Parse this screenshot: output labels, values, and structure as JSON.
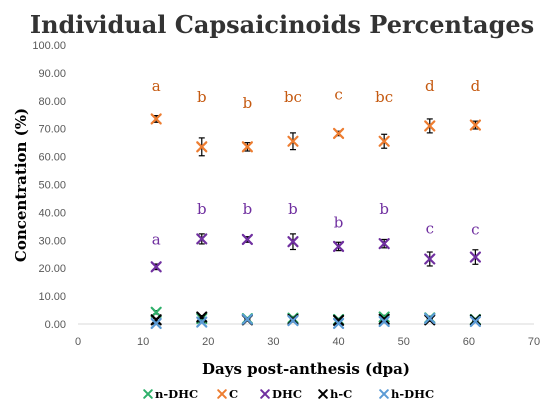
{
  "chart_data": {
    "type": "scatter",
    "title": "Individual Capsaicinoids Percentages",
    "xlabel": "Days post-anthesis (dpa)",
    "ylabel": "Concentration (%)",
    "xlim": [
      0,
      70
    ],
    "ylim": [
      0,
      100
    ],
    "x_ticks": [
      "0",
      "10",
      "20",
      "30",
      "40",
      "50",
      "60",
      "70"
    ],
    "y_ticks": [
      "0.00",
      "10.00",
      "20.00",
      "30.00",
      "40.00",
      "50.00",
      "60.00",
      "70.00",
      "80.00",
      "90.00",
      "100.00"
    ],
    "grid": false,
    "legend_position": "bottom",
    "colors": {
      "n-DHC": "#2eb06a",
      "C": "#ed7d31",
      "DHC": "#7030a0",
      "h-C": "#000000",
      "h-DHC": "#5b9bd5",
      "annotation_C": "#c55a11",
      "annotation_DHC": "#7030a0"
    },
    "series": [
      {
        "name": "n-DHC",
        "x": [
          12,
          19,
          26,
          33,
          40,
          47,
          54,
          61
        ],
        "y": [
          4.2,
          2.0,
          1.9,
          2.1,
          1.6,
          2.5,
          2.2,
          1.6
        ],
        "err": [
          0.6,
          0.5,
          0.4,
          0.6,
          0.4,
          0.6,
          0.6,
          0.4
        ]
      },
      {
        "name": "C",
        "x": [
          12,
          19,
          26,
          33,
          40,
          47,
          54,
          61
        ],
        "y": [
          73.5,
          63.5,
          63.5,
          65.5,
          68.3,
          65.5,
          71.0,
          71.3
        ],
        "err": [
          1.2,
          3.2,
          1.5,
          3.0,
          0.8,
          2.5,
          2.5,
          1.4
        ]
      },
      {
        "name": "DHC",
        "x": [
          12,
          19,
          26,
          33,
          40,
          47,
          54,
          61
        ],
        "y": [
          20.5,
          30.5,
          30.3,
          29.5,
          27.8,
          28.8,
          23.3,
          24.0
        ],
        "err": [
          1.0,
          1.8,
          1.0,
          2.8,
          1.5,
          1.5,
          2.5,
          2.6
        ]
      },
      {
        "name": "h-C",
        "x": [
          12,
          19,
          26,
          33,
          40,
          47,
          54,
          61
        ],
        "y": [
          1.5,
          2.5,
          1.5,
          1.6,
          1.3,
          1.7,
          1.5,
          1.4
        ],
        "err": [
          0.5,
          0.5,
          0.4,
          0.5,
          0.4,
          0.5,
          0.5,
          0.4
        ]
      },
      {
        "name": "h-DHC",
        "x": [
          12,
          19,
          26,
          33,
          40,
          47,
          54,
          61
        ],
        "y": [
          0.2,
          0.7,
          1.7,
          1.2,
          0.2,
          0.9,
          2.0,
          0.9
        ],
        "err": [
          0.3,
          0.3,
          0.5,
          0.5,
          0.3,
          0.4,
          0.6,
          0.3
        ]
      }
    ],
    "annotations": [
      {
        "series": "C",
        "labels": [
          "a",
          "b",
          "b",
          "bc",
          "c",
          "bc",
          "d",
          "d"
        ],
        "y": [
          83.5,
          79.5,
          77.5,
          79.5,
          80.5,
          79.5,
          83.5,
          83.5
        ]
      },
      {
        "series": "DHC",
        "labels": [
          "a",
          "b",
          "b",
          "b",
          "b",
          "b",
          "c",
          "c"
        ],
        "y": [
          28.5,
          39.5,
          39.5,
          39.5,
          34.5,
          39.5,
          32.5,
          32.0
        ]
      }
    ]
  }
}
